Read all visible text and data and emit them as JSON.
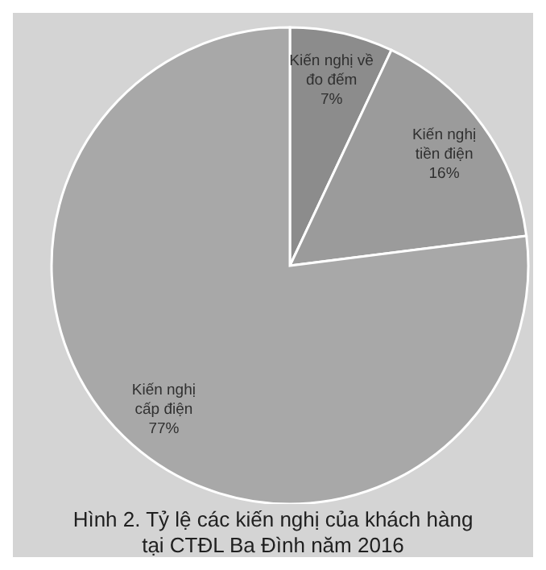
{
  "chart_data": {
    "type": "pie",
    "title": "Hình 2. Tỷ lệ các kiến nghị của khách hàng tại CTĐL Ba Đình năm 2016",
    "categories": [
      "Kiến nghị về đo đếm",
      "Kiến nghị tiền điện",
      "Kiến nghị cấp điện"
    ],
    "values": [
      7,
      16,
      77
    ],
    "colors": [
      "#8c8c8c",
      "#9b9b9b",
      "#a8a8a8"
    ],
    "value_labels": [
      "7%",
      "16%",
      "77%"
    ]
  }
}
